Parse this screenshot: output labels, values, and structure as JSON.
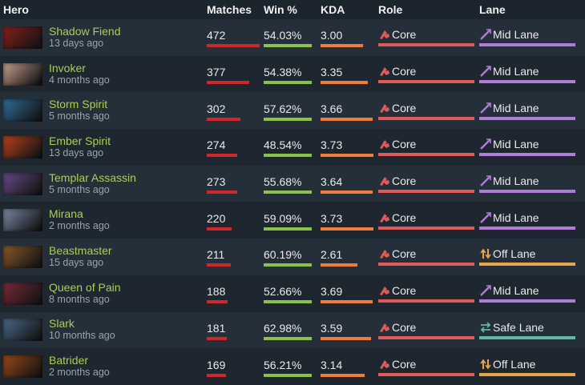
{
  "headers": {
    "hero": "Hero",
    "matches": "Matches",
    "win": "Win %",
    "kda": "KDA",
    "role": "Role",
    "lane": "Lane"
  },
  "colors": {
    "matches_bar": "#d1262a",
    "win_bar": "#8bc34a",
    "kda_bar": "#f07c3a",
    "role_bar": "#e05a5a",
    "mid_lane": "#b07cd8",
    "off_lane": "#e8a64a",
    "safe_lane": "#5fb8a8",
    "hero_name": "#a9cf54"
  },
  "rows": [
    {
      "hero": "Shadow Fiend",
      "time": "13 days ago",
      "portrait": "#8a1f1a",
      "matches": "472",
      "matches_frac": 1.0,
      "win": "54.03%",
      "win_frac": 0.54,
      "kda": "3.00",
      "kda_frac": 0.8,
      "role": "Core",
      "lane": "Mid Lane",
      "lane_type": "mid"
    },
    {
      "hero": "Invoker",
      "time": "4 months ago",
      "portrait": "#c9a090",
      "matches": "377",
      "matches_frac": 0.8,
      "win": "54.38%",
      "win_frac": 0.54,
      "kda": "3.35",
      "kda_frac": 0.9,
      "role": "Core",
      "lane": "Mid Lane",
      "lane_type": "mid"
    },
    {
      "hero": "Storm Spirit",
      "time": "5 months ago",
      "portrait": "#2f6f9a",
      "matches": "302",
      "matches_frac": 0.64,
      "win": "57.62%",
      "win_frac": 0.58,
      "kda": "3.66",
      "kda_frac": 0.98,
      "role": "Core",
      "lane": "Mid Lane",
      "lane_type": "mid"
    },
    {
      "hero": "Ember Spirit",
      "time": "13 days ago",
      "portrait": "#b8431c",
      "matches": "274",
      "matches_frac": 0.58,
      "win": "48.54%",
      "win_frac": 0.49,
      "kda": "3.73",
      "kda_frac": 1.0,
      "role": "Core",
      "lane": "Mid Lane",
      "lane_type": "mid"
    },
    {
      "hero": "Templar Assassin",
      "time": "5 months ago",
      "portrait": "#6a4a8a",
      "matches": "273",
      "matches_frac": 0.58,
      "win": "55.68%",
      "win_frac": 0.56,
      "kda": "3.64",
      "kda_frac": 0.98,
      "role": "Core",
      "lane": "Mid Lane",
      "lane_type": "mid"
    },
    {
      "hero": "Mirana",
      "time": "2 months ago",
      "portrait": "#7a8aa8",
      "matches": "220",
      "matches_frac": 0.47,
      "win": "59.09%",
      "win_frac": 0.59,
      "kda": "3.73",
      "kda_frac": 1.0,
      "role": "Core",
      "lane": "Mid Lane",
      "lane_type": "mid"
    },
    {
      "hero": "Beastmaster",
      "time": "15 days ago",
      "portrait": "#8a5a2a",
      "matches": "211",
      "matches_frac": 0.45,
      "win": "60.19%",
      "win_frac": 0.6,
      "kda": "2.61",
      "kda_frac": 0.7,
      "role": "Core",
      "lane": "Off Lane",
      "lane_type": "off"
    },
    {
      "hero": "Queen of Pain",
      "time": "8 months ago",
      "portrait": "#7a2a3a",
      "matches": "188",
      "matches_frac": 0.4,
      "win": "52.66%",
      "win_frac": 0.53,
      "kda": "3.69",
      "kda_frac": 0.99,
      "role": "Core",
      "lane": "Mid Lane",
      "lane_type": "mid"
    },
    {
      "hero": "Slark",
      "time": "10 months ago",
      "portrait": "#4a6a8a",
      "matches": "181",
      "matches_frac": 0.38,
      "win": "62.98%",
      "win_frac": 0.63,
      "kda": "3.59",
      "kda_frac": 0.96,
      "role": "Core",
      "lane": "Safe Lane",
      "lane_type": "safe"
    },
    {
      "hero": "Batrider",
      "time": "2 months ago",
      "portrait": "#9a4a1a",
      "matches": "169",
      "matches_frac": 0.36,
      "win": "56.21%",
      "win_frac": 0.56,
      "kda": "3.14",
      "kda_frac": 0.84,
      "role": "Core",
      "lane": "Off Lane",
      "lane_type": "off"
    }
  ]
}
